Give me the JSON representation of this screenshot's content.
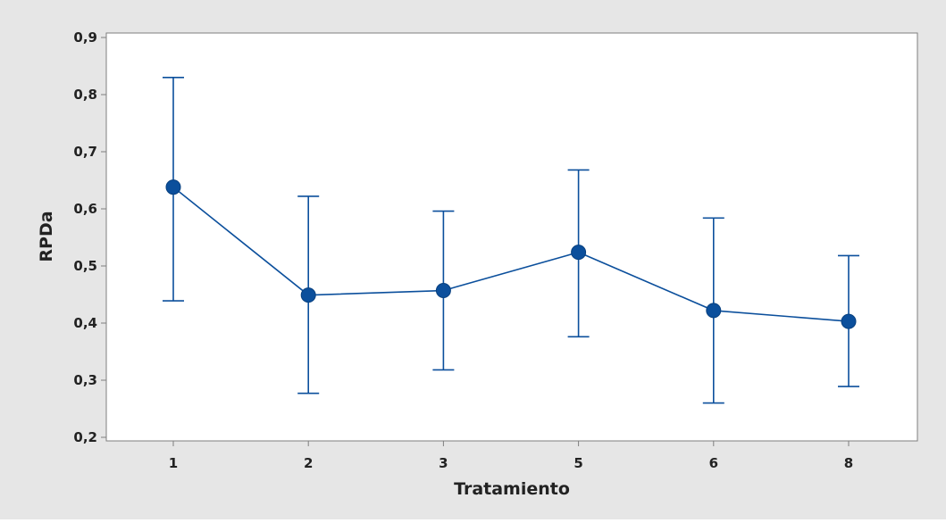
{
  "chart_data": {
    "type": "line",
    "subtype": "interval-plot",
    "xlabel": "Tratamiento",
    "ylabel": "RPDa",
    "categories": [
      "1",
      "2",
      "3",
      "5",
      "6",
      "8"
    ],
    "series": [
      {
        "values": [
          0.638,
          0.449,
          0.457,
          0.524,
          0.422,
          0.403
        ],
        "lower": [
          0.439,
          0.277,
          0.318,
          0.376,
          0.26,
          0.289
        ],
        "upper": [
          0.83,
          0.622,
          0.596,
          0.668,
          0.584,
          0.518
        ]
      }
    ],
    "ylim": [
      0.2,
      0.9
    ],
    "yticks": [
      "0,2",
      "0,3",
      "0,4",
      "0,5",
      "0,6",
      "0,7",
      "0,8",
      "0,9"
    ],
    "grid": false,
    "colors": {
      "series": "#0b4f9c",
      "outer_background": "#e6e6e6",
      "plot_background": "#ffffff",
      "axis": "#7f7f7f",
      "text": "#222222"
    }
  }
}
